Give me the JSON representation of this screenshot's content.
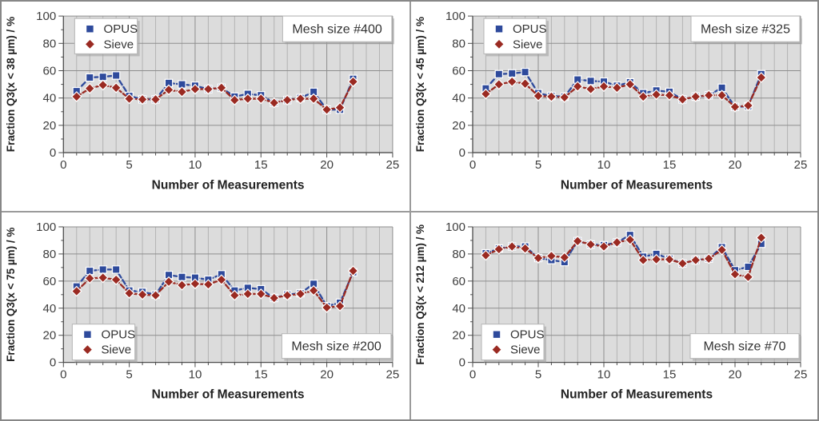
{
  "figure": {
    "xlabel": "Number of Measurements",
    "xlim": [
      0,
      25
    ],
    "ylim": [
      0,
      100
    ],
    "xticks": [
      0,
      5,
      10,
      15,
      20,
      25
    ],
    "yticks": [
      0,
      20,
      40,
      60,
      80,
      100
    ],
    "grid": "on",
    "colors": {
      "opus": "#2e4a9c",
      "sieve": "#9a2a22",
      "plot_bg": "#dcdcdc",
      "minor_grid": "#b3b3b3",
      "major_grid": "#8e8e8e",
      "axis": "#4d4d4d",
      "tick_text": "#3d3d3d",
      "title_text": "#333333"
    },
    "legend_entries": [
      {
        "label": "OPUS",
        "marker": "square-icon",
        "color_key": "opus"
      },
      {
        "label": "Sieve",
        "marker": "diamond-icon",
        "color_key": "sieve"
      }
    ]
  },
  "chart_data": [
    {
      "type": "line",
      "title": "Mesh size #400",
      "ylabel": "Fraction Q3(x < 38 µm) / %",
      "xlabel": "Number of Measurements",
      "xlim": [
        0,
        25
      ],
      "ylim": [
        0,
        100
      ],
      "legend_pos": "top-left",
      "title_pos": "top-right",
      "x": [
        1,
        2,
        3,
        4,
        5,
        6,
        7,
        8,
        9,
        10,
        11,
        12,
        13,
        14,
        15,
        16,
        17,
        18,
        19,
        20,
        21,
        22
      ],
      "series": [
        {
          "name": "OPUS",
          "values": [
            45,
            55,
            55.5,
            56.5,
            41.5,
            39,
            39,
            51,
            50,
            49,
            46.5,
            47.5,
            41,
            43,
            42,
            36.5,
            38.5,
            40,
            44.5,
            31.5,
            31.5,
            54
          ]
        },
        {
          "name": "Sieve",
          "values": [
            41,
            47,
            49.5,
            47.5,
            39.5,
            39,
            39,
            46,
            44.5,
            46.5,
            46.5,
            47.5,
            38.5,
            39.5,
            39.5,
            36.5,
            38.5,
            39.5,
            39.5,
            31.5,
            33,
            52
          ]
        }
      ]
    },
    {
      "type": "line",
      "title": "Mesh size #325",
      "ylabel": "Fraction Q3(x < 45 µm) / %",
      "xlabel": "Number of Measurements",
      "xlim": [
        0,
        25
      ],
      "ylim": [
        0,
        100
      ],
      "legend_pos": "top-left",
      "title_pos": "top-right",
      "x": [
        1,
        2,
        3,
        4,
        5,
        6,
        7,
        8,
        9,
        10,
        11,
        12,
        13,
        14,
        15,
        16,
        17,
        18,
        19,
        20,
        21,
        22
      ],
      "series": [
        {
          "name": "OPUS",
          "values": [
            47,
            57.5,
            58,
            59,
            43.5,
            41.5,
            41,
            53.5,
            52.5,
            52,
            49,
            51.5,
            43.5,
            45.5,
            44.5,
            39,
            41,
            42,
            47.5,
            33.5,
            34,
            57.5
          ]
        },
        {
          "name": "Sieve",
          "values": [
            43,
            50,
            52,
            50.5,
            41.5,
            41,
            40.5,
            48.5,
            46.5,
            48.5,
            47.5,
            50,
            41,
            42.5,
            42,
            39,
            41,
            42,
            42,
            33.5,
            34.5,
            55
          ]
        }
      ]
    },
    {
      "type": "line",
      "title": "Mesh size #200",
      "ylabel": "Fraction Q3(x < 75 µm) / %",
      "xlabel": "Number of Measurements",
      "xlim": [
        0,
        25
      ],
      "ylim": [
        0,
        100
      ],
      "legend_pos": "bottom-left",
      "title_pos": "bottom-right",
      "x": [
        1,
        2,
        3,
        4,
        5,
        6,
        7,
        8,
        9,
        10,
        11,
        12,
        13,
        14,
        15,
        16,
        17,
        18,
        19,
        20,
        21,
        22
      ],
      "series": [
        {
          "name": "OPUS",
          "values": [
            56,
            67.5,
            68.5,
            68.5,
            53,
            52,
            50,
            64.5,
            63,
            62.5,
            61,
            65,
            53,
            55,
            54,
            47.5,
            50,
            51,
            58,
            41.5,
            44,
            66.5
          ]
        },
        {
          "name": "Sieve",
          "values": [
            52.5,
            62,
            62.5,
            61,
            51,
            50,
            49.5,
            59.5,
            57,
            58,
            57.5,
            61,
            49.5,
            50.5,
            50.5,
            47.5,
            49.5,
            50.5,
            53,
            40.5,
            41.5,
            67.5
          ]
        }
      ]
    },
    {
      "type": "line",
      "title": "Mesh size #70",
      "ylabel": "Fraction Q3(x < 212 µm) / %",
      "xlabel": "Number of Measurements",
      "xlim": [
        0,
        25
      ],
      "ylim": [
        0,
        100
      ],
      "legend_pos": "bottom-left",
      "title_pos": "bottom-right",
      "x": [
        1,
        2,
        3,
        4,
        5,
        6,
        7,
        8,
        9,
        10,
        11,
        12,
        13,
        14,
        15,
        16,
        17,
        18,
        19,
        20,
        21,
        22
      ],
      "series": [
        {
          "name": "OPUS",
          "values": [
            80.5,
            84,
            85.5,
            85.5,
            77,
            75.5,
            74,
            89.5,
            87,
            86.5,
            88.5,
            94,
            78,
            80,
            76.5,
            73,
            75.5,
            76.5,
            85,
            68,
            70.5,
            87.5
          ]
        },
        {
          "name": "Sieve",
          "values": [
            79,
            83.5,
            85.5,
            84,
            77,
            78.5,
            77.5,
            89.5,
            87,
            85.5,
            88.5,
            90.5,
            75.5,
            76,
            76,
            73,
            75.5,
            76.5,
            83,
            65,
            63,
            92
          ]
        }
      ]
    }
  ]
}
